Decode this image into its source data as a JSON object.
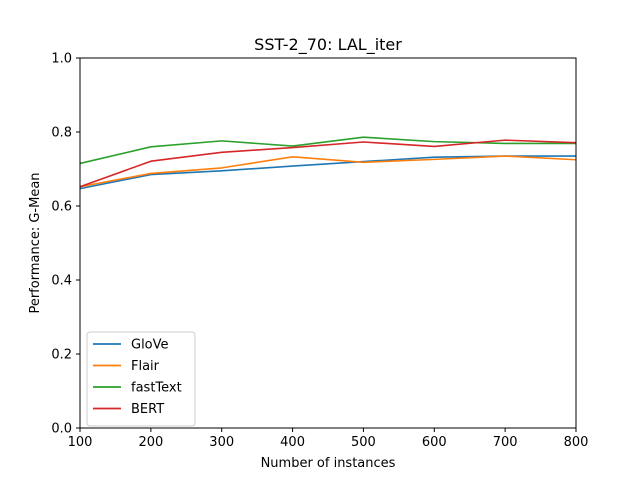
{
  "chart_data": {
    "type": "line",
    "title": "SST-2_70: LAL_iter",
    "xlabel": "Number of instances",
    "ylabel": "Performance: G-Mean",
    "xlim": [
      100,
      800
    ],
    "ylim": [
      0.0,
      1.0
    ],
    "xticks": [
      "100",
      "200",
      "300",
      "400",
      "500",
      "600",
      "700",
      "800"
    ],
    "yticks": [
      "0.0",
      "0.2",
      "0.4",
      "0.6",
      "0.8",
      "1.0"
    ],
    "grid": false,
    "legend_position": "lower-left",
    "x": [
      100,
      200,
      300,
      400,
      500,
      600,
      700,
      800
    ],
    "series": [
      {
        "name": "GloVe",
        "color": "#1f77b4",
        "values": [
          0.647,
          0.685,
          0.695,
          0.708,
          0.72,
          0.732,
          0.735,
          0.735
        ]
      },
      {
        "name": "Flair",
        "color": "#ff7f0e",
        "values": [
          0.652,
          0.688,
          0.703,
          0.733,
          0.718,
          0.726,
          0.735,
          0.725
        ]
      },
      {
        "name": "fastText",
        "color": "#2ca02c",
        "values": [
          0.715,
          0.76,
          0.776,
          0.762,
          0.786,
          0.774,
          0.769,
          0.769
        ]
      },
      {
        "name": "BERT",
        "color": "#d62728",
        "values": [
          0.652,
          0.721,
          0.745,
          0.758,
          0.773,
          0.761,
          0.778,
          0.771
        ]
      }
    ]
  }
}
